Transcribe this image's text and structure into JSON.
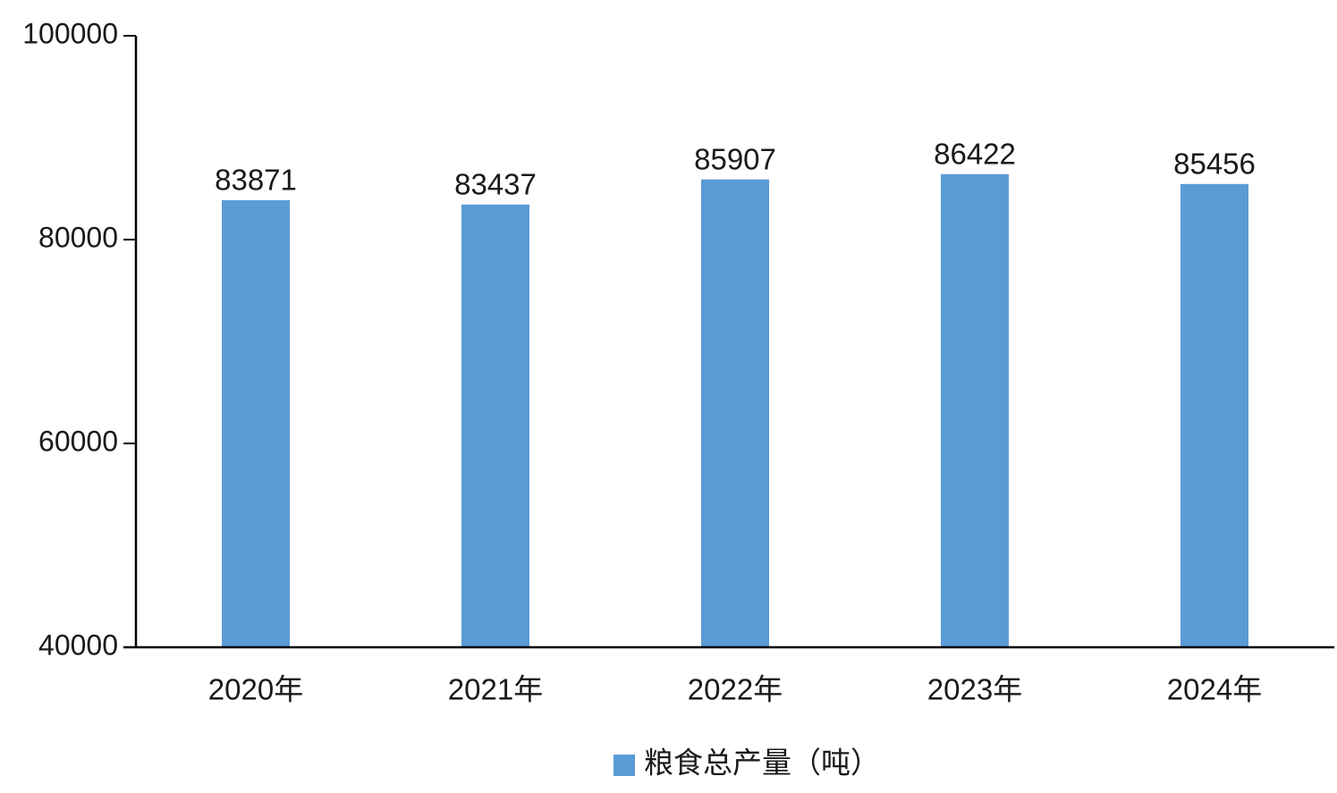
{
  "chart_data": {
    "type": "bar",
    "categories": [
      "2020年",
      "2021年",
      "2022年",
      "2023年",
      "2024年"
    ],
    "series": [
      {
        "name": "粮食总产量（吨）",
        "color": "#5b9bd5",
        "values": [
          83871,
          83437,
          85907,
          86422,
          85456
        ]
      }
    ],
    "ylim": [
      40000,
      100000
    ],
    "yticks": [
      40000,
      60000,
      80000,
      100000
    ],
    "grid": false,
    "legend": "bottom"
  }
}
